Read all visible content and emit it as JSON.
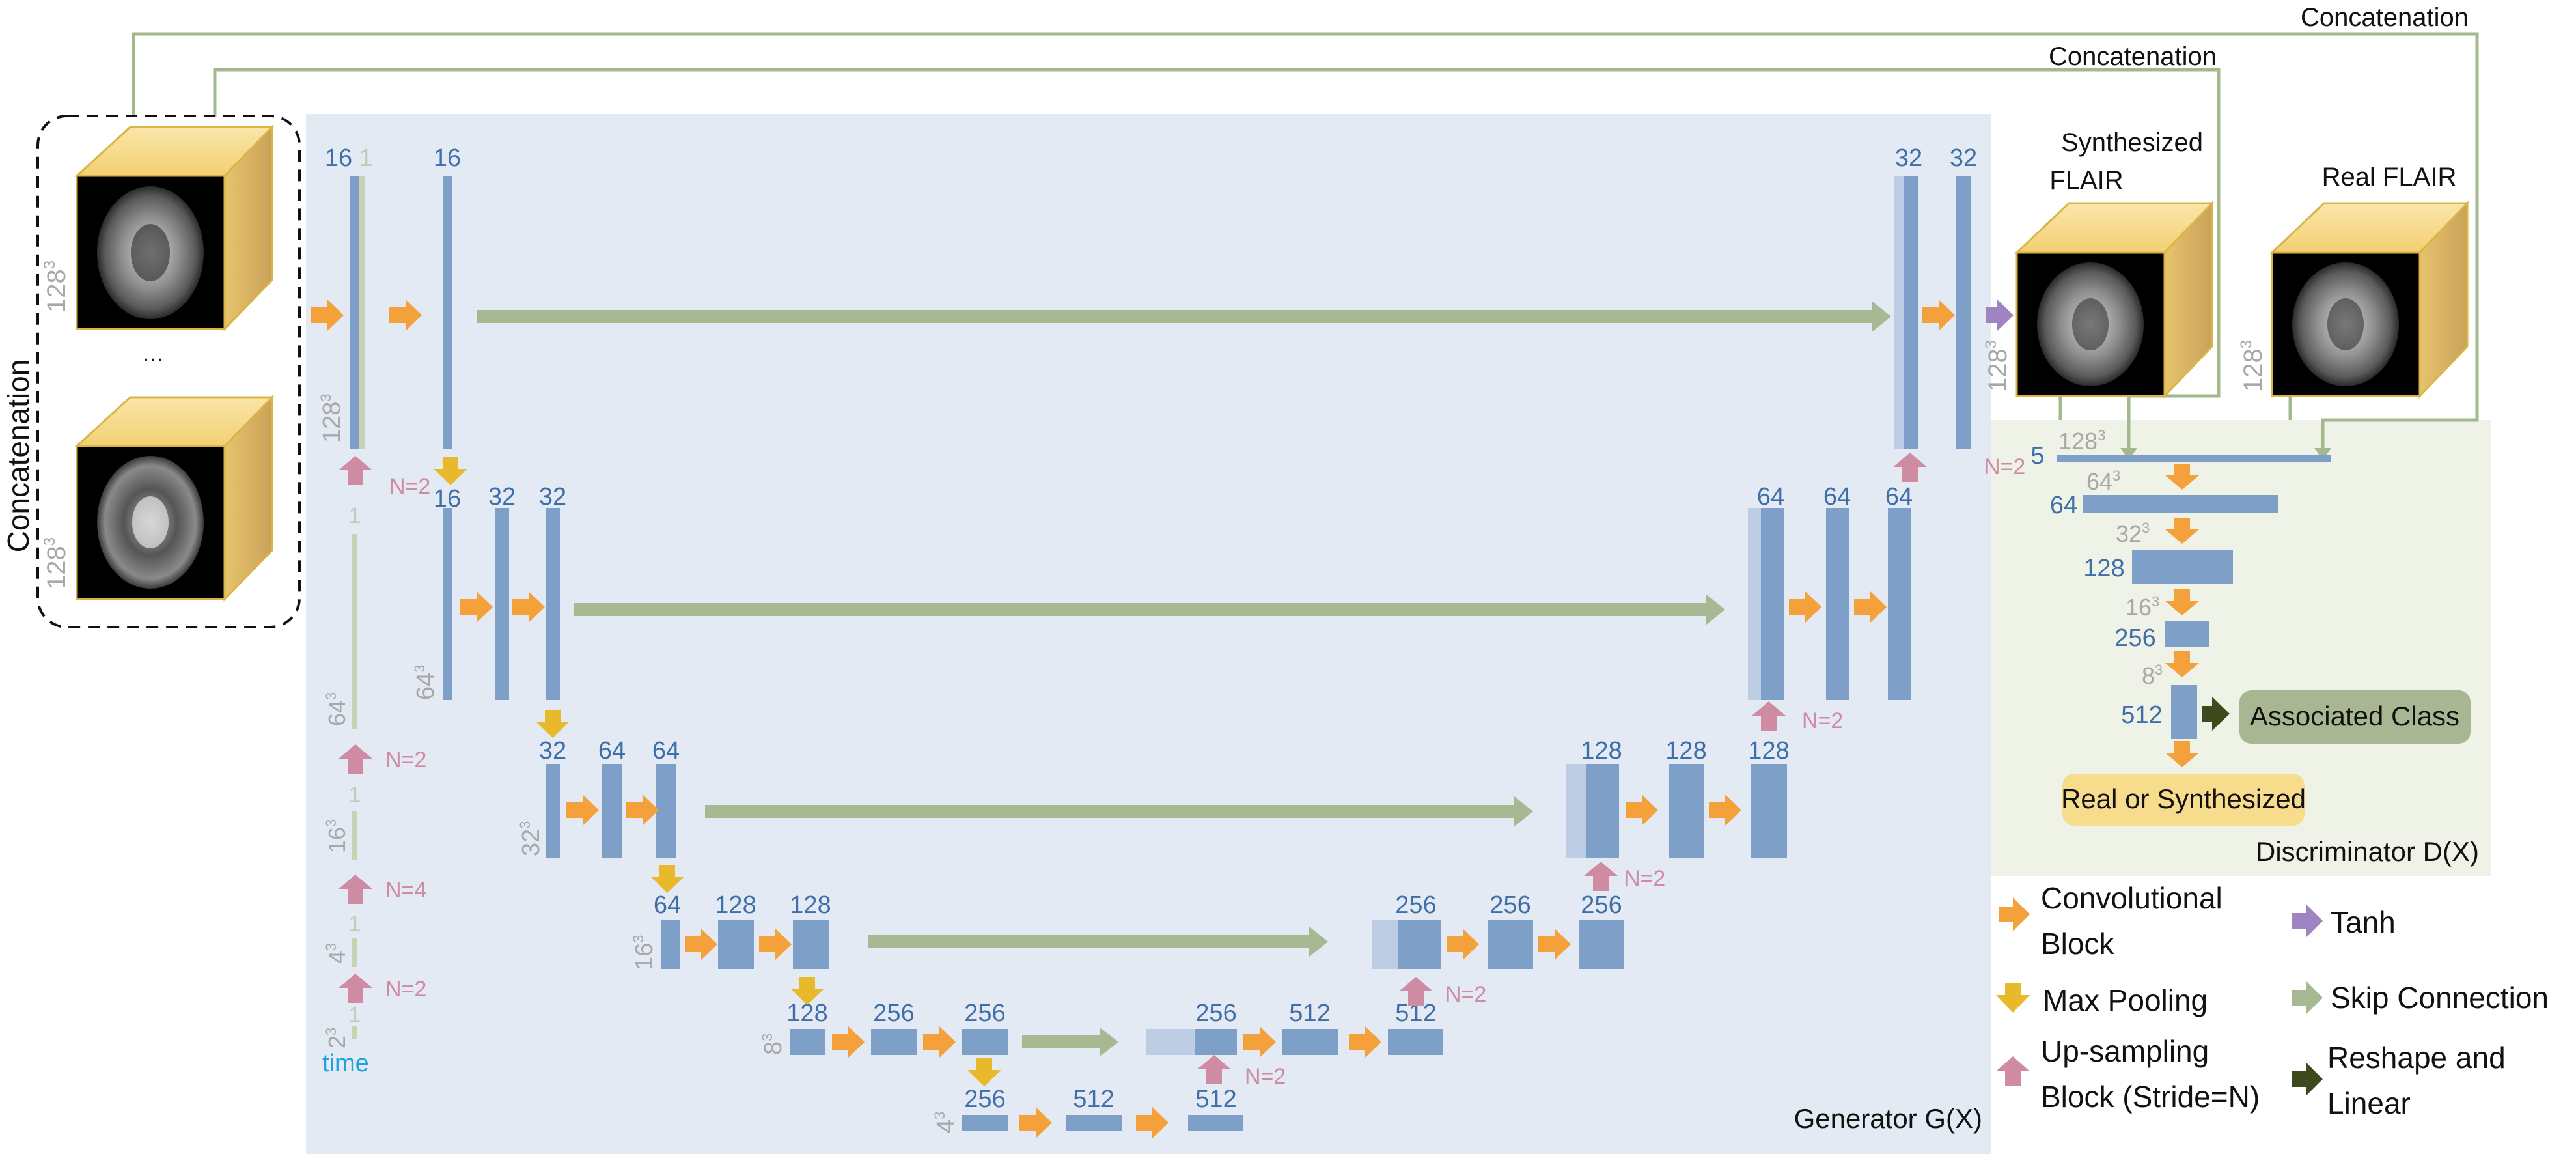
{
  "colors": {
    "generator_bg": "#e4eaf3",
    "discriminator_bg": "#eff2e7",
    "conv_arrow": "#f4a13b",
    "pool_arrow": "#e7b92b",
    "upsample_arrow": "#cf8ba1",
    "skip_arrow": "#a7b992",
    "tanh_arrow": "#9f84c2",
    "linear_arrow": "#3c4a1c",
    "feature_bar": "#7d9fc8",
    "feature_bar_light": "#bdcde4",
    "channel_text": "#3f6fa8",
    "size_text": "#a8a8a8",
    "time_text": "#1ea2e0",
    "time_bar": "#c7d3b3",
    "cube_face": "#f7df9c",
    "cube_edge": "#d9b546",
    "associated_class_fill": "#a9b692",
    "real_synth_fill": "#f6dc8c",
    "connector_line": "#a3b88d"
  },
  "labels": {
    "concat_top": "Concatenation",
    "concat_second": "Concatenation",
    "concat_left": "Concatenation",
    "ellipsis": "...",
    "synthesized_line1": "Synthesized",
    "synthesized_line2": "FLAIR",
    "real_flair": "Real FLAIR",
    "generator": "Generator G(X)",
    "discriminator": "Discriminator D(X)",
    "associated_class": "Associated Class",
    "real_or_synthesized": "Real or Synthesized",
    "time": "time"
  },
  "channels": {
    "enc1a": "16",
    "enc1b": "1",
    "enc1c": "16",
    "enc2a": "16",
    "enc2b": "32",
    "enc2c": "32",
    "enc3a": "32",
    "enc3b": "64",
    "enc3c": "64",
    "enc4a": "64",
    "enc4b": "128",
    "enc4c": "128",
    "enc5a": "128",
    "enc5b": "256",
    "enc5c": "256",
    "bott_a": "256",
    "bott_b": "512",
    "bott_c": "512",
    "dec5a": "256",
    "dec5b": "512",
    "dec5c": "512",
    "dec4a": "256",
    "dec4b": "256",
    "dec4c": "256",
    "dec3a": "128",
    "dec3b": "128",
    "dec3c": "128",
    "dec2a": "64",
    "dec2b": "64",
    "dec2c": "64",
    "dec1a": "32",
    "dec1b": "32",
    "time1": "1",
    "time2": "1",
    "time3": "1",
    "time4": "1",
    "disc1": "5",
    "disc2": "64",
    "disc3": "128",
    "disc4": "256",
    "disc5": "512"
  },
  "sizes": {
    "cube1": "128",
    "cube2": "128",
    "cube_syn": "128",
    "cube_real": "128",
    "enc1": "128",
    "enc2": "64",
    "enc3": "32",
    "enc4": "16",
    "enc5": "8",
    "bott": "4",
    "time_a": "64",
    "time_b": "16",
    "time_c": "4",
    "time_d": "2",
    "disc1": "128",
    "disc2": "64",
    "disc3": "32",
    "disc4": "16",
    "disc5": "8",
    "exponent": "3"
  },
  "upsample_strides": {
    "gen_first": "N=2",
    "time_a": "N=2",
    "time_b": "N=4",
    "time_c": "N=2",
    "dec_bott": "N=2",
    "dec5": "N=2",
    "dec4": "N=2",
    "dec3": "N=2",
    "dec2": "N=2"
  },
  "legend": {
    "conv_line1": "Convolutional",
    "conv_line2": "Block",
    "tanh": "Tanh",
    "maxpool": "Max Pooling",
    "skip": "Skip Connection",
    "upsample_line1": "Up-sampling",
    "upsample_line2": "Block (Stride=N)",
    "reshape_line1": "Reshape and",
    "reshape_line2": "Linear"
  }
}
